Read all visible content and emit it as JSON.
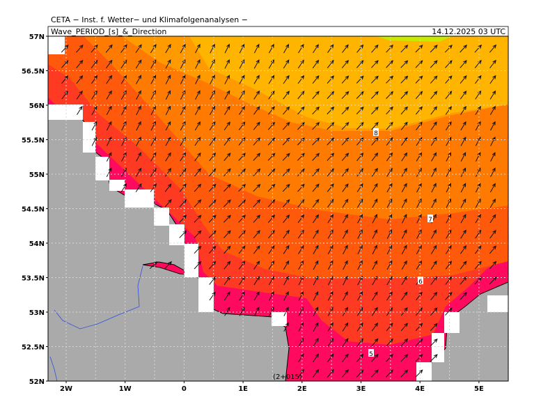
{
  "header": {
    "institute": "CETA − Inst. f. Wetter− und Klimafolgenanalysen −",
    "title": "Wave_PERIOD_[s]_&_Direction",
    "valid_time": "14.12.2025 03 UTC"
  },
  "map": {
    "lat_labels": [
      "57N",
      "56.5N",
      "56N",
      "55.5N",
      "55N",
      "54.5N",
      "54N",
      "53.5N",
      "53N",
      "52.5N",
      "52N"
    ],
    "lon_labels": [
      "2W",
      "1W",
      "0",
      "1E",
      "2E",
      "3E",
      "4E",
      "5E"
    ],
    "contour_labels": [
      "8",
      "7",
      "6",
      "5"
    ],
    "footer": "(2+015)"
  }
}
